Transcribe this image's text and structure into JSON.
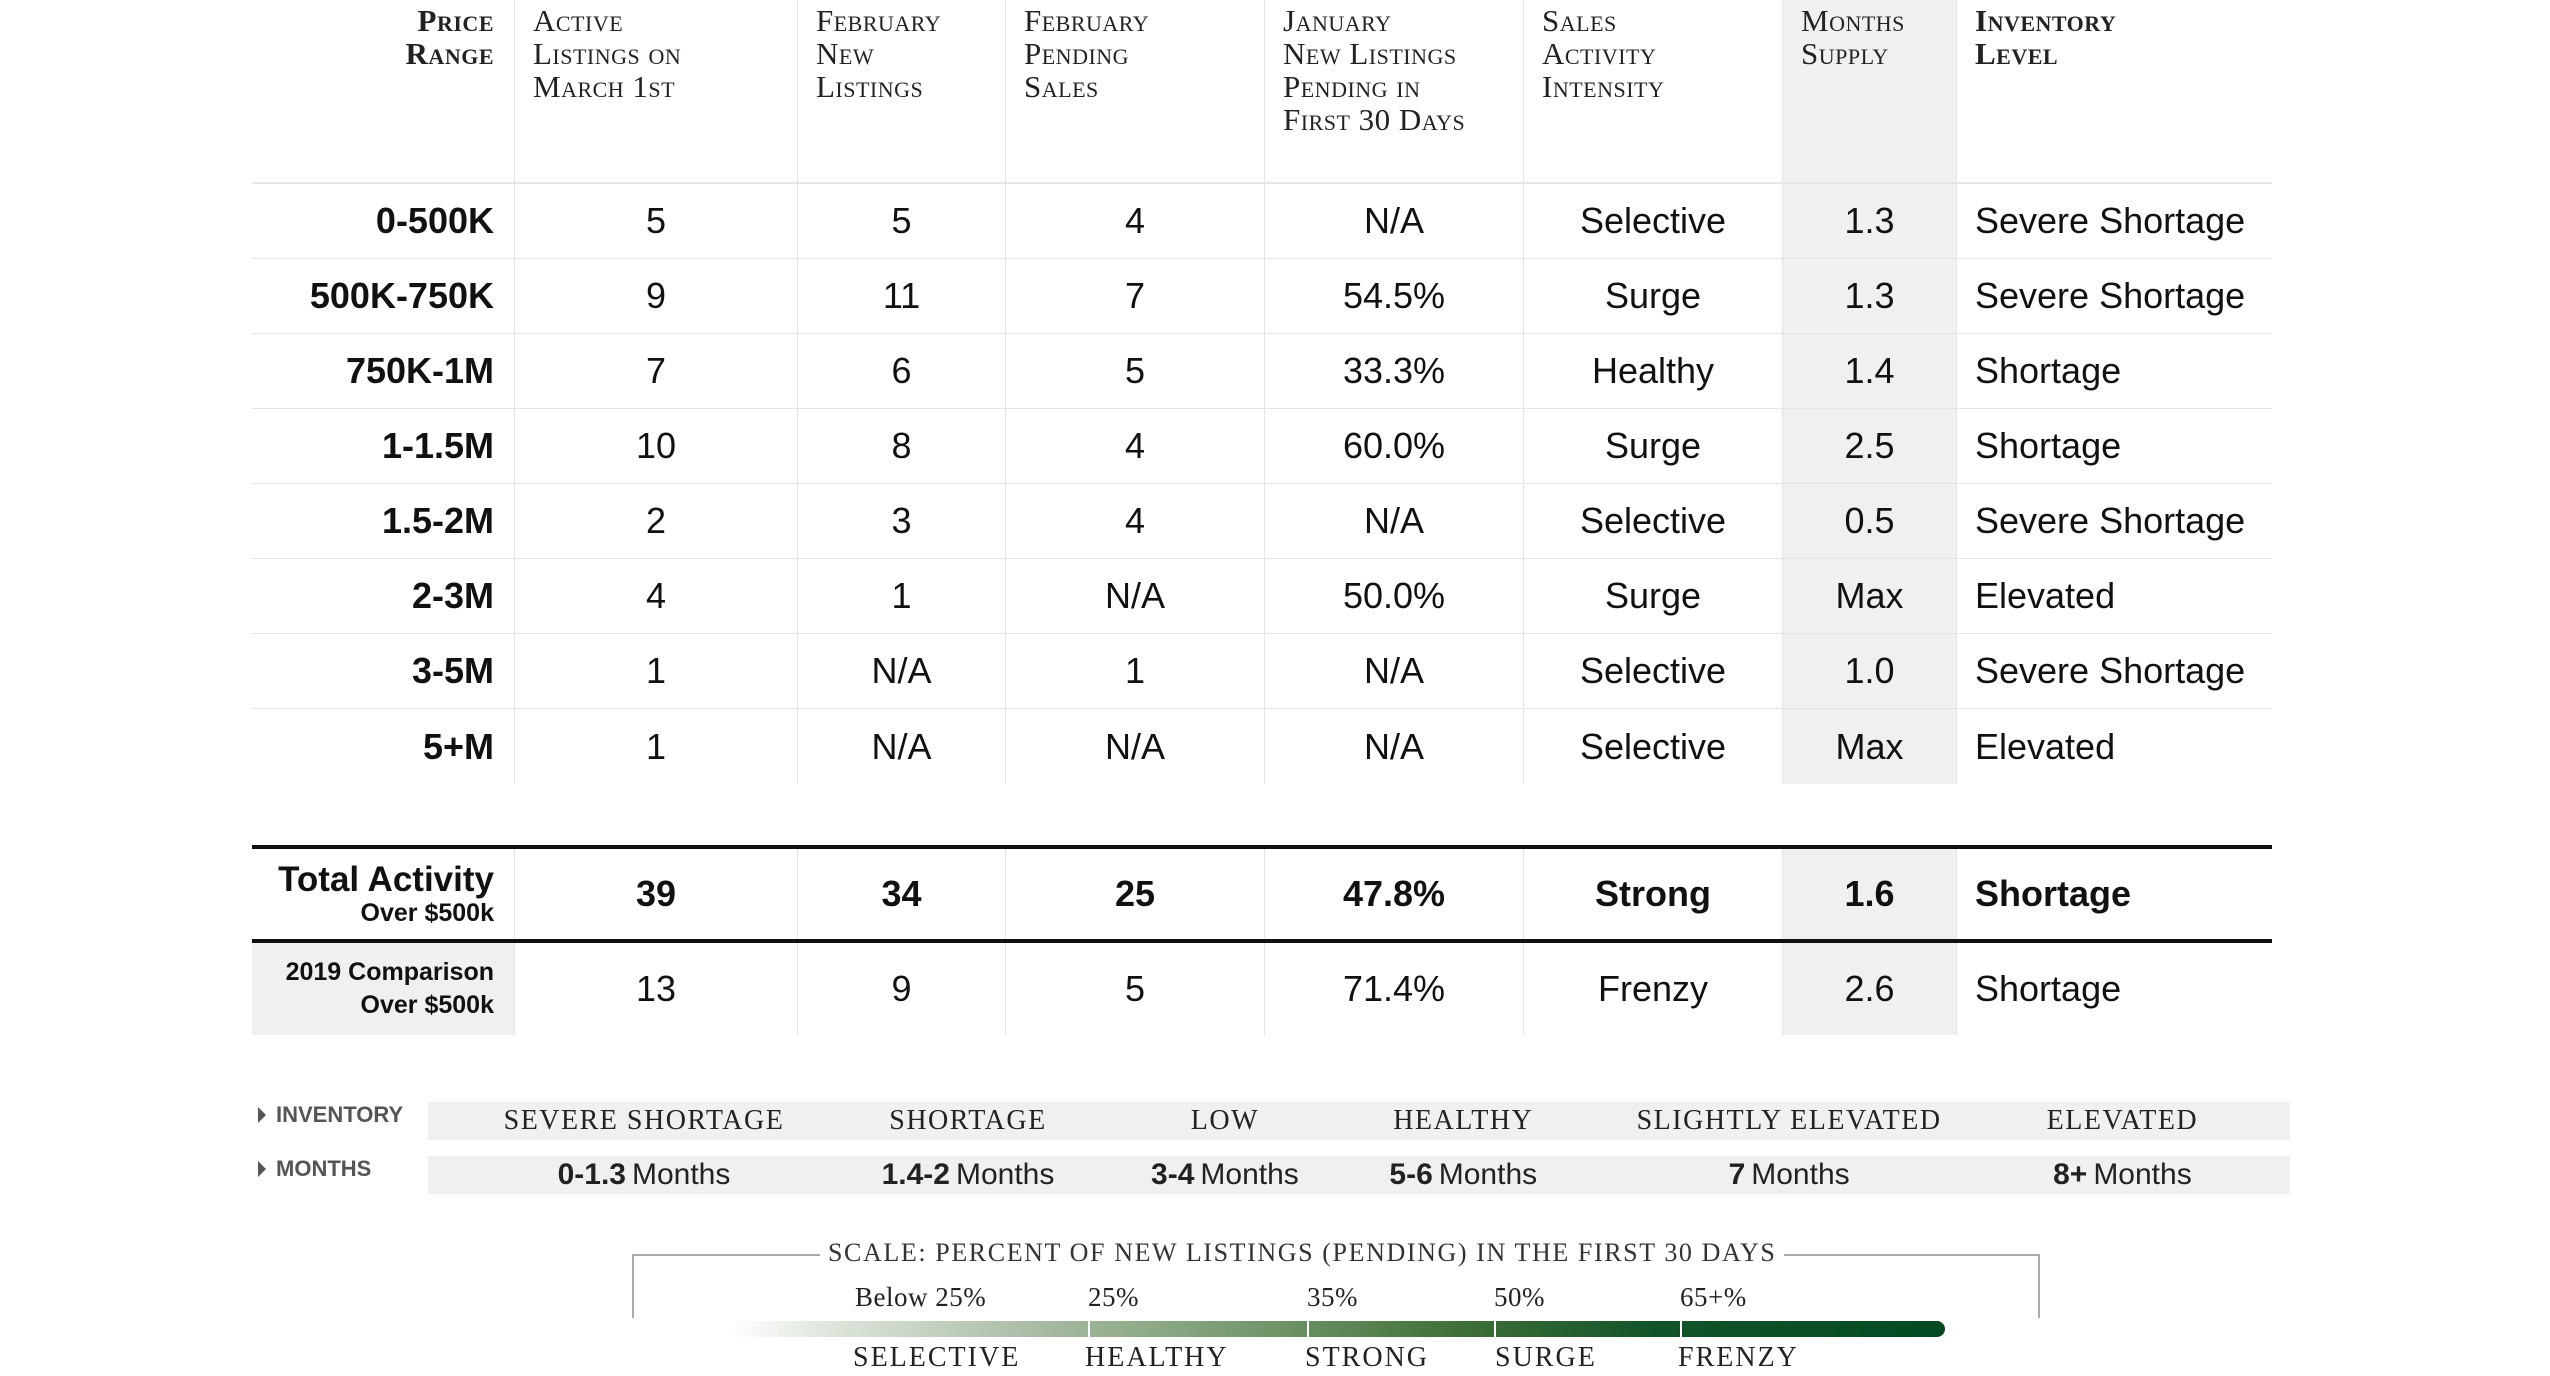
{
  "headers": [
    "Price\nRange",
    "Active\nListings on\nMarch 1st",
    "February\nNew\nListings",
    "February\nPending\nSales",
    "January\nNew Listings\nPending in\nFirst 30 Days",
    "Sales\nActivity\nIntensity",
    "Months\nSupply",
    "Inventory\nLevel"
  ],
  "rows": [
    [
      "0-500K",
      "5",
      "5",
      "4",
      "N/A",
      "Selective",
      "1.3",
      "Severe Shortage"
    ],
    [
      "500K-750K",
      "9",
      "11",
      "7",
      "54.5%",
      "Surge",
      "1.3",
      "Severe Shortage"
    ],
    [
      "750K-1M",
      "7",
      "6",
      "5",
      "33.3%",
      "Healthy",
      "1.4",
      "Shortage"
    ],
    [
      "1-1.5M",
      "10",
      "8",
      "4",
      "60.0%",
      "Surge",
      "2.5",
      "Shortage"
    ],
    [
      "1.5-2M",
      "2",
      "3",
      "4",
      "N/A",
      "Selective",
      "0.5",
      "Severe Shortage"
    ],
    [
      "2-3M",
      "4",
      "1",
      "N/A",
      "50.0%",
      "Surge",
      "Max",
      "Elevated"
    ],
    [
      "3-5M",
      "1",
      "N/A",
      "1",
      "N/A",
      "Selective",
      "1.0",
      "Severe Shortage"
    ],
    [
      "5+M",
      "1",
      "N/A",
      "N/A",
      "N/A",
      "Selective",
      "Max",
      "Elevated"
    ]
  ],
  "total": {
    "label": "Total Activity",
    "sublabel": "Over $500k",
    "values": [
      "39",
      "34",
      "25",
      "47.8%",
      "Strong",
      "1.6",
      "Shortage"
    ]
  },
  "comparison": {
    "label": "2019 Comparison",
    "sublabel": "Over $500k",
    "values": [
      "13",
      "9",
      "5",
      "71.4%",
      "Frenzy",
      "2.6",
      "Shortage"
    ]
  },
  "legend": {
    "inventory_label": "INVENTORY",
    "months_label": "MONTHS",
    "inventory_levels": [
      "SEVERE SHORTAGE",
      "SHORTAGE",
      "LOW",
      "HEALTHY",
      "SLIGHTLY ELEVATED",
      "ELEVATED"
    ],
    "months": [
      {
        "range": "0-1.3",
        "unit": "Months"
      },
      {
        "range": "1.4-2",
        "unit": "Months"
      },
      {
        "range": "3-4",
        "unit": "Months"
      },
      {
        "range": "5-6",
        "unit": "Months"
      },
      {
        "range": "7",
        "unit": "Months"
      },
      {
        "range": "8+",
        "unit": "Months"
      }
    ]
  },
  "scale": {
    "title": "SCALE: PERCENT OF NEW LISTINGS (PENDING) IN THE FIRST 30 DAYS",
    "thresholds": [
      "Below 25%",
      "25%",
      "35%",
      "50%",
      "65+%"
    ],
    "levels": [
      "SELECTIVE",
      "HEALTHY",
      "STRONG",
      "SURGE",
      "FRENZY"
    ],
    "gradient_start": "#ffffff",
    "gradient_end": "#034a22"
  }
}
